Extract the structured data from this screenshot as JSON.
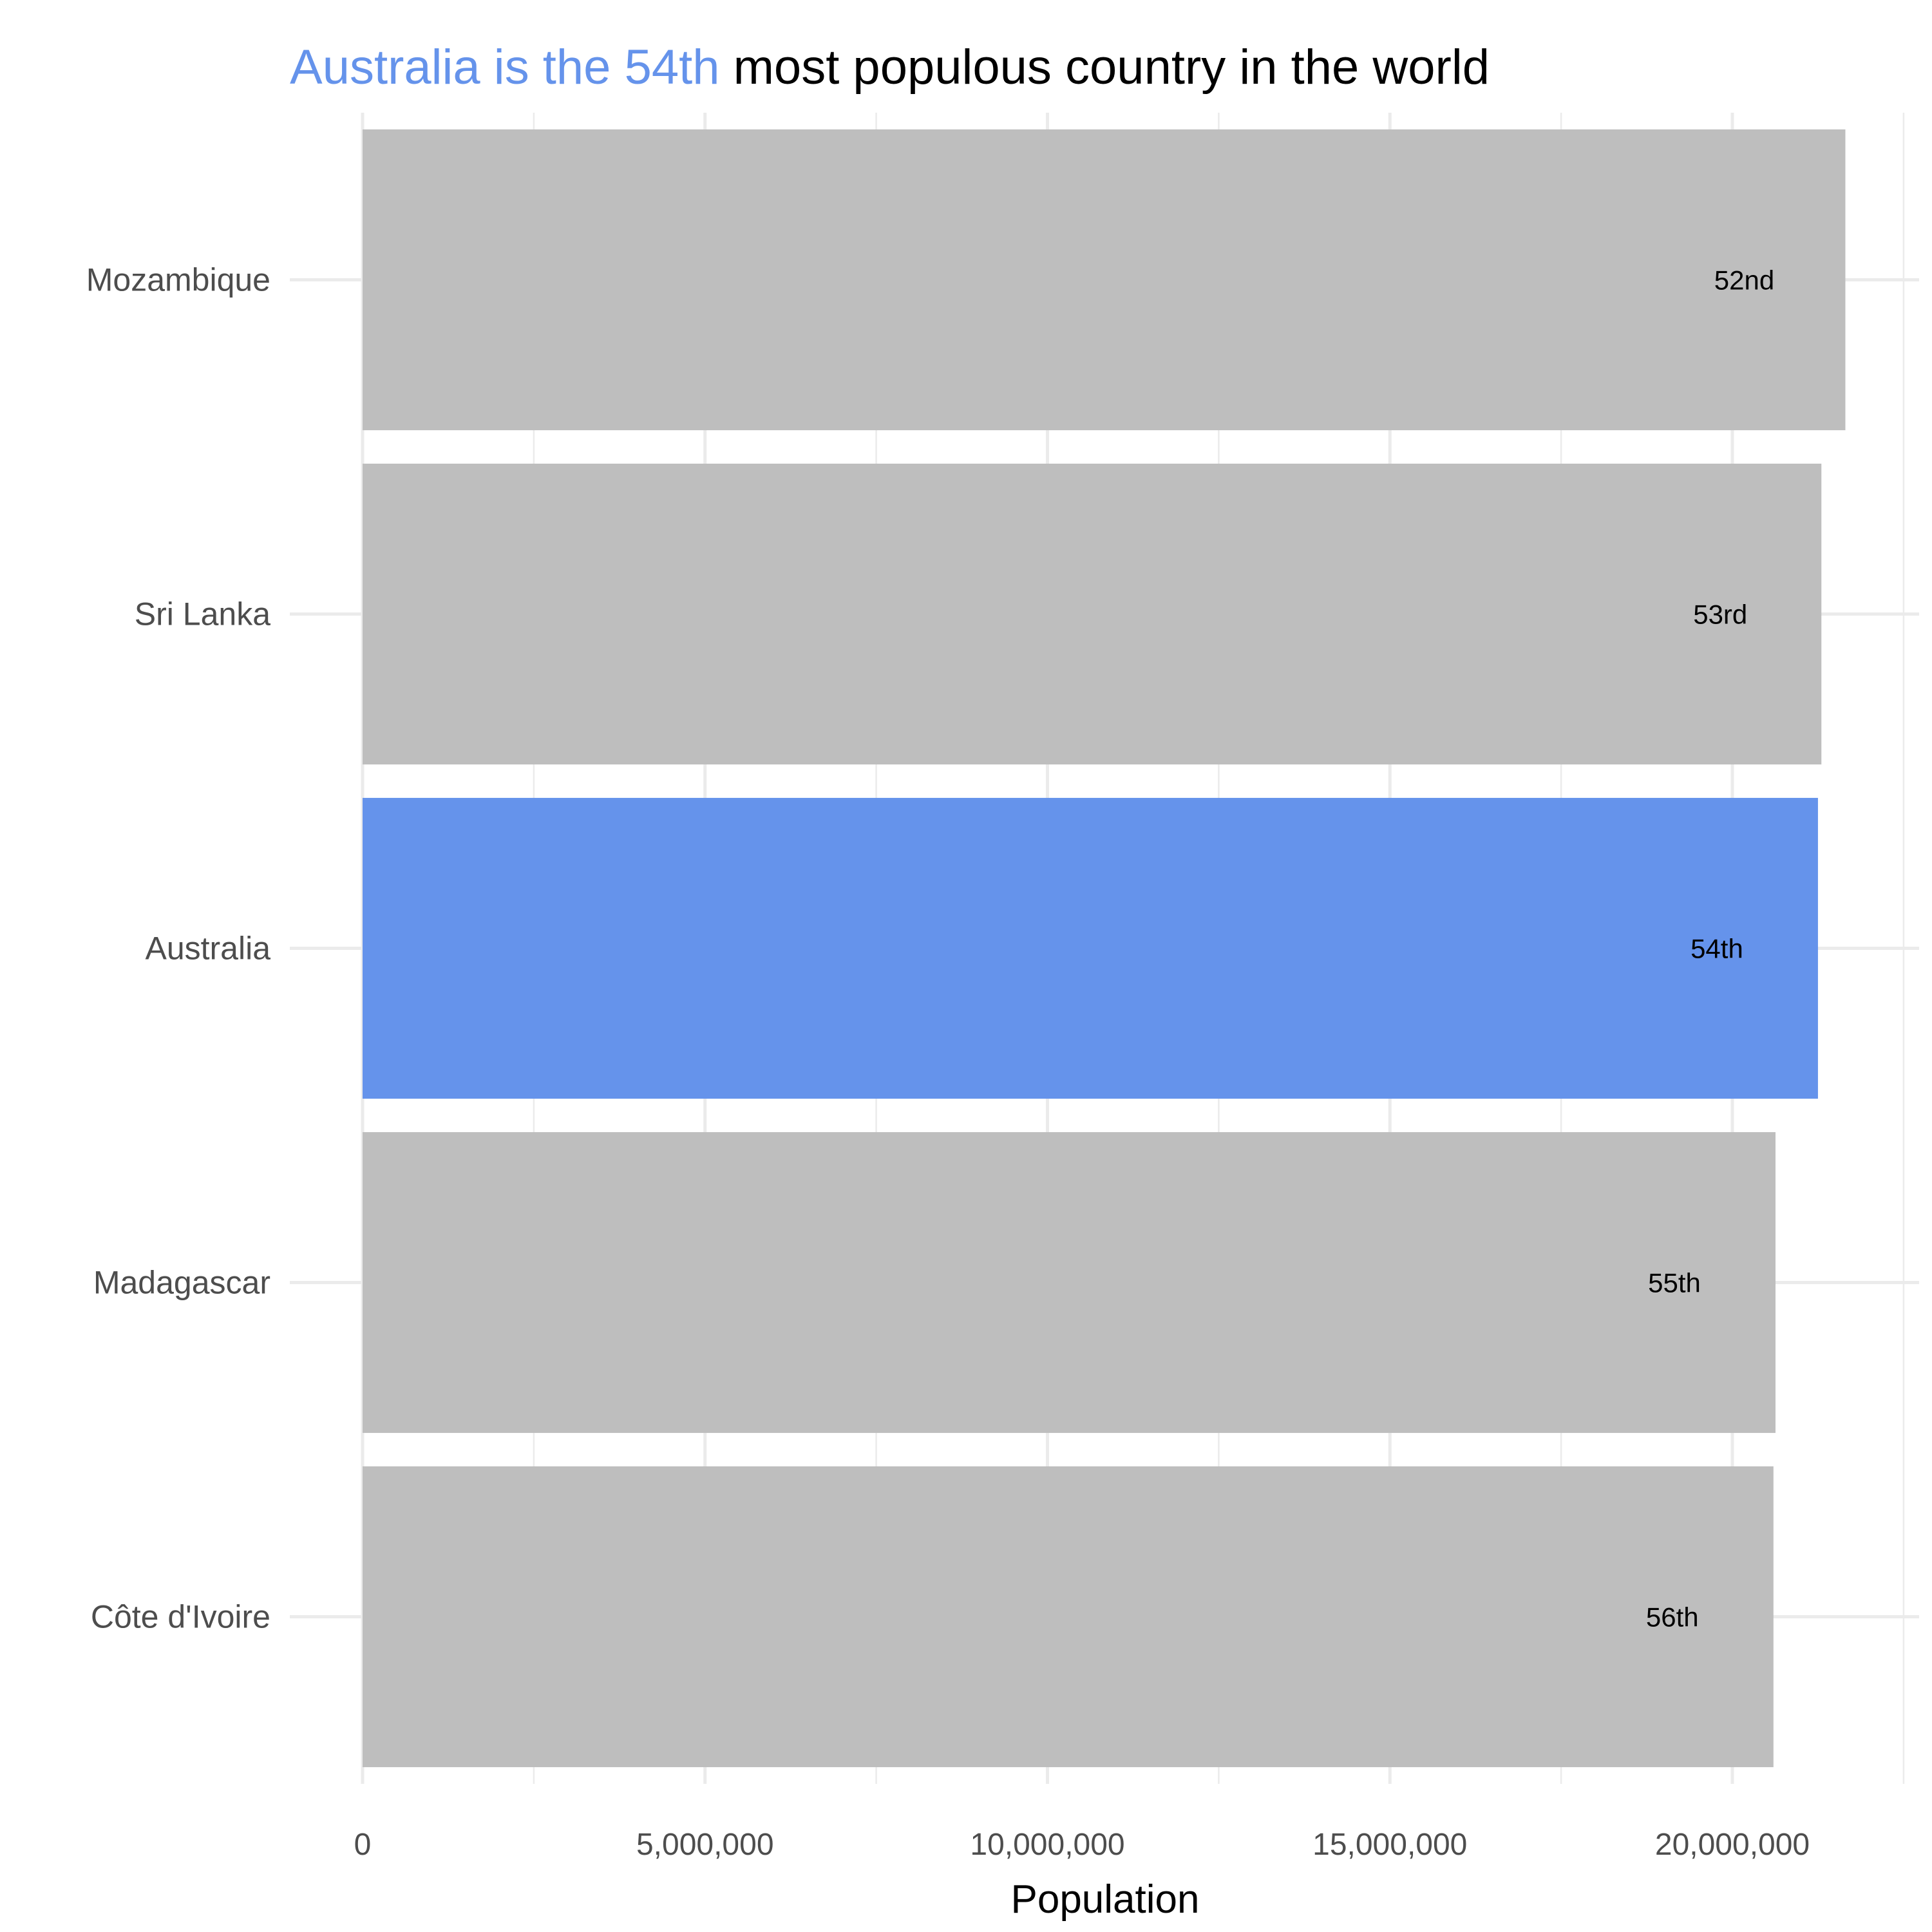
{
  "chart_data": {
    "type": "bar",
    "orientation": "horizontal",
    "title": {
      "highlight": "Australia is the 54th",
      "rest": " most populous country in the world"
    },
    "xlabel": "Population",
    "ylabel": "",
    "xlim": [
      0,
      22500000
    ],
    "x_ticks": [
      0,
      5000000,
      10000000,
      15000000,
      20000000
    ],
    "x_tick_labels": [
      "0",
      "5,000,000",
      "10,000,000",
      "15,000,000",
      "20,000,000"
    ],
    "categories": [
      "Mozambique",
      "Sri Lanka",
      "Australia",
      "Madagascar",
      "Côte d'Ivoire"
    ],
    "values": [
      21650000,
      21300000,
      21250000,
      20630000,
      20600000
    ],
    "data_labels": [
      "52nd",
      "53rd",
      "54th",
      "55th",
      "56th"
    ],
    "highlighted_category": "Australia",
    "grid": true,
    "legend": "none",
    "colors": {
      "default_bar": "#bebebe",
      "highlight_bar": "#6593eb",
      "highlight_text": "#6593eb",
      "grid": "#ebebeb"
    }
  }
}
